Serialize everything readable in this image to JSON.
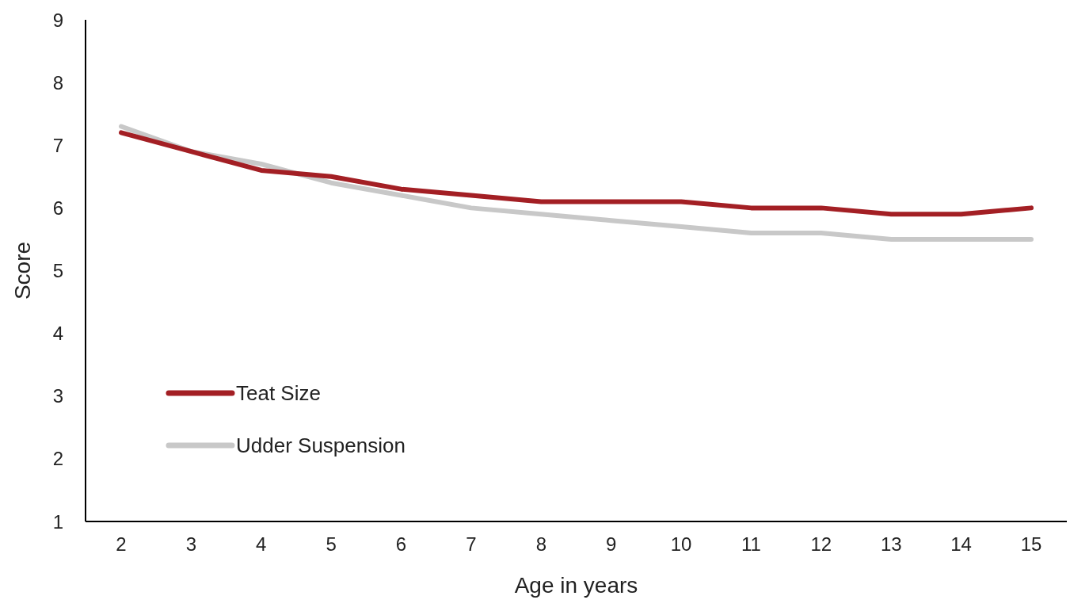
{
  "chart_data": {
    "type": "line",
    "xlabel": "Age in years",
    "ylabel": "Score",
    "categories": [
      "2",
      "3",
      "4",
      "5",
      "6",
      "7",
      "8",
      "9",
      "10",
      "11",
      "12",
      "13",
      "14",
      "15"
    ],
    "series": [
      {
        "name": "Teat Size",
        "color": "#a31f24",
        "values": [
          7.2,
          6.9,
          6.6,
          6.5,
          6.3,
          6.2,
          6.1,
          6.1,
          6.1,
          6.0,
          6.0,
          5.9,
          5.9,
          6.0
        ]
      },
      {
        "name": "Udder Suspension",
        "color": "#c8c8c8",
        "values": [
          7.3,
          6.9,
          6.7,
          6.4,
          6.2,
          6.0,
          5.9,
          5.8,
          5.7,
          5.6,
          5.6,
          5.5,
          5.5,
          5.5
        ]
      }
    ],
    "ylim": [
      1,
      9
    ],
    "yticks": [
      1,
      2,
      3,
      4,
      5,
      6,
      7,
      8,
      9
    ],
    "grid": false,
    "legend": "left",
    "marker": "none",
    "line_style": "solid"
  }
}
